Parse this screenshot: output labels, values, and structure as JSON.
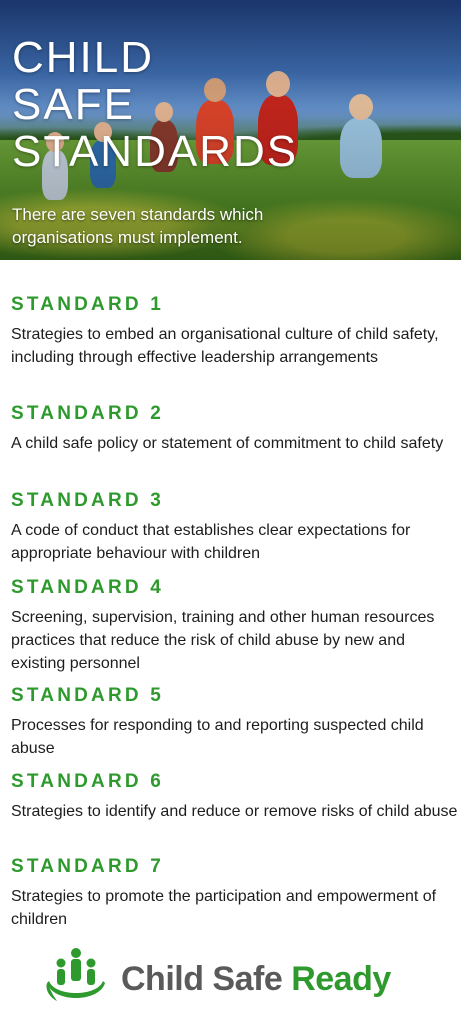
{
  "hero": {
    "title_lines": [
      "CHILD",
      "SAFE",
      "STANDARDS"
    ],
    "subtitle": "There are seven standards which organisations must implement."
  },
  "standards": [
    {
      "label": "STANDARD 1",
      "text": "Strategies to embed an organisational culture of child safety, including through effective leadership arrangements"
    },
    {
      "label": "STANDARD 2",
      "text": "A child safe policy or statement of commitment to child safety"
    },
    {
      "label": "STANDARD 3",
      "text": "A code of conduct that establishes clear expectations for appropriate behaviour with children"
    },
    {
      "label": "STANDARD 4",
      "text": "Screening, supervision, training and other human resources practices that reduce the risk of child abuse by new and existing personnel"
    },
    {
      "label": "STANDARD 5",
      "text": "Processes for responding to and reporting suspected child abuse"
    },
    {
      "label": "STANDARD 6",
      "text": "Strategies to identify and reduce or remove risks of child abuse"
    },
    {
      "label": "STANDARD 7",
      "text": "Strategies to promote the participation and empowerment of children"
    }
  ],
  "logo": {
    "text_part1": "Child Safe",
    "text_part2": "Ready",
    "icon": "family-hands-icon"
  },
  "colors": {
    "accent_green": "#2e9a2e",
    "logo_grey": "#5a5a5a"
  }
}
